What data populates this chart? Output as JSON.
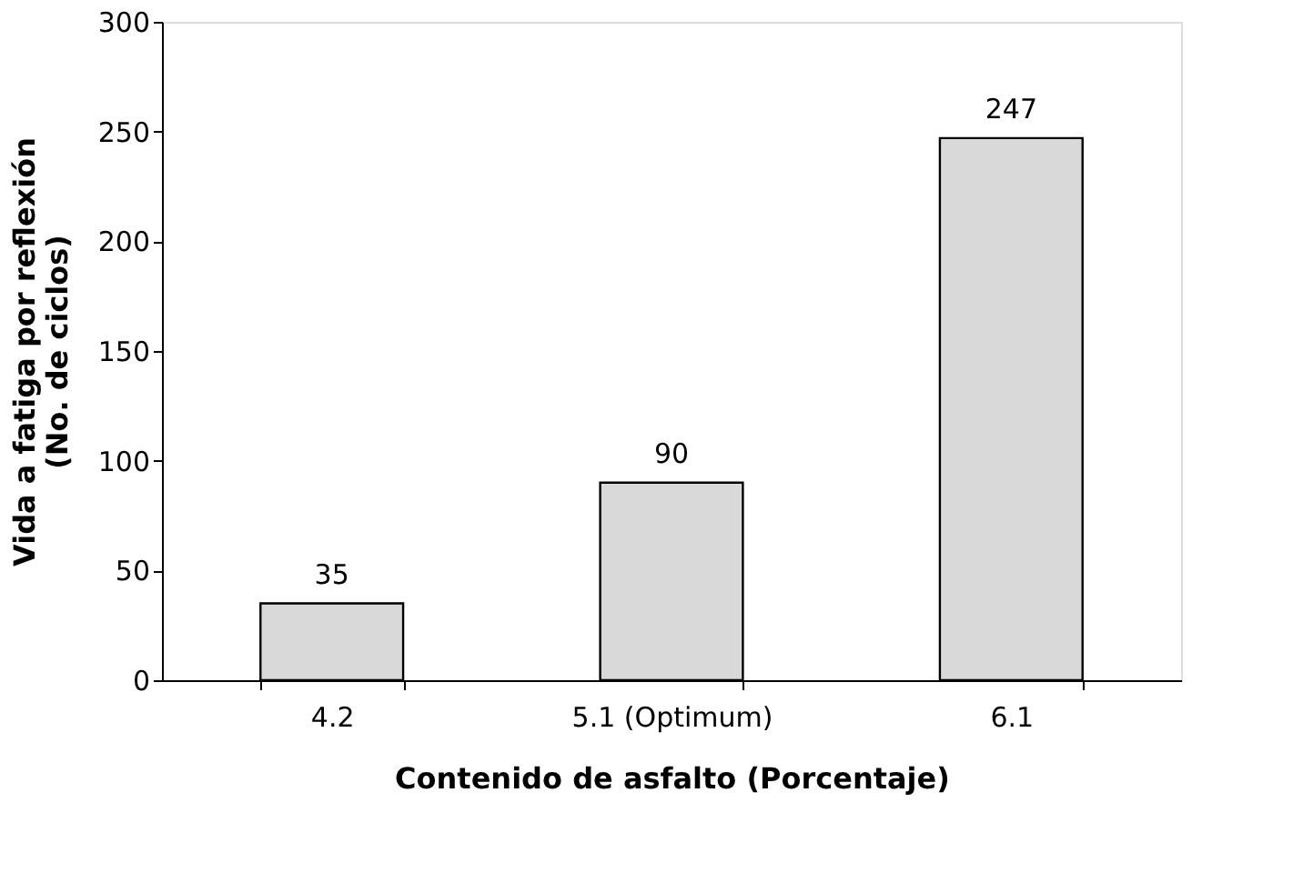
{
  "chart_data": {
    "type": "bar",
    "xlabel": "Contenido de asfalto (Porcentaje)",
    "ylabel": "Vida a fatiga por reflexión\n(No. de ciclos)",
    "categories": [
      "4.2",
      "5.1 (Optimum)",
      "6.1"
    ],
    "values": [
      35,
      90,
      247
    ],
    "color": "#d9d9d9",
    "ylim": [
      0,
      300
    ],
    "yticks": [
      0,
      50,
      100,
      150,
      200,
      250,
      300
    ],
    "grid": false,
    "data_labels": true
  }
}
